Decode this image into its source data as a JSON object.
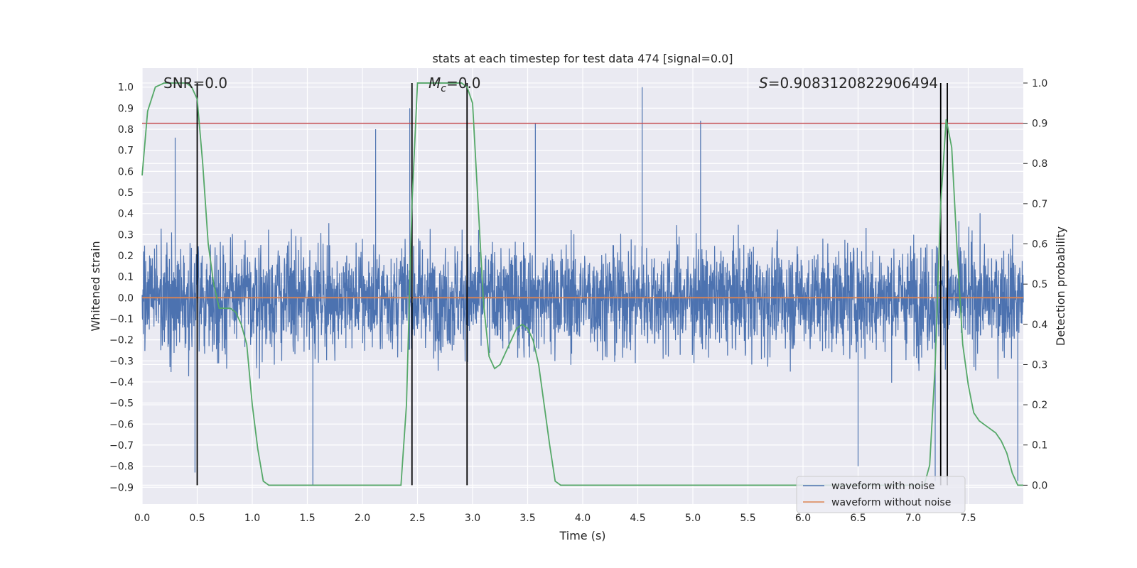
{
  "chart_data": {
    "type": "line",
    "title": "stats at each timestep for test data 474 [signal=0.0]",
    "xlabel": "Time (s)",
    "ylabel": "Whitened strain",
    "y2label": "Detection probability",
    "xlim": [
      0.0,
      8.0
    ],
    "ylim": [
      -0.98,
      1.09
    ],
    "y2lim": [
      -0.047,
      1.037
    ],
    "x_ticks": [
      "0.0",
      "0.5",
      "1.0",
      "1.5",
      "2.0",
      "2.5",
      "3.0",
      "3.5",
      "4.0",
      "4.5",
      "5.0",
      "5.5",
      "6.0",
      "6.5",
      "7.0",
      "7.5"
    ],
    "y_ticks": [
      "1.0",
      "0.9",
      "0.8",
      "0.7",
      "0.6",
      "0.5",
      "0.4",
      "0.3",
      "0.2",
      "0.1",
      "0.0",
      "−0.1",
      "−0.2",
      "−0.3",
      "−0.4",
      "−0.5",
      "−0.6",
      "−0.7",
      "−0.8",
      "−0.9"
    ],
    "y2_ticks": [
      "1.0",
      "0.9",
      "0.8",
      "0.7",
      "0.6",
      "0.5",
      "0.4",
      "0.3",
      "0.2",
      "0.1",
      "0.0"
    ],
    "grid": true,
    "legend_position": "lower-right",
    "series": [
      {
        "name": "waveform with noise",
        "color": "#4c72b0",
        "axis": "left",
        "description_values": "dense noise roughly between -0.6 and 0.6 with spikes to about 1.0 and -0.9",
        "spikes": [
          {
            "x": 0.3,
            "y": 0.76
          },
          {
            "x": 0.48,
            "y": -0.83
          },
          {
            "x": 1.55,
            "y": -0.89
          },
          {
            "x": 2.12,
            "y": 0.8
          },
          {
            "x": 2.43,
            "y": 0.9
          },
          {
            "x": 3.57,
            "y": 0.83
          },
          {
            "x": 4.54,
            "y": 1.0
          },
          {
            "x": 5.07,
            "y": 0.84
          },
          {
            "x": 6.5,
            "y": -0.8
          },
          {
            "x": 7.2,
            "y": -0.87
          },
          {
            "x": 7.95,
            "y": -0.87
          }
        ]
      },
      {
        "name": "waveform without noise",
        "color": "#dd8452",
        "axis": "left",
        "x": [
          0.0,
          8.0
        ],
        "values": [
          0.0,
          0.0
        ]
      },
      {
        "name": "",
        "color": "#55a868",
        "axis": "right",
        "x": [
          0.0,
          0.05,
          0.12,
          0.2,
          0.3,
          0.4,
          0.45,
          0.5,
          0.55,
          0.6,
          0.65,
          0.7,
          0.75,
          0.8,
          0.85,
          0.9,
          0.95,
          1.0,
          1.05,
          1.1,
          1.15,
          1.2,
          1.5,
          2.0,
          2.3,
          2.35,
          2.4,
          2.45,
          2.5,
          2.55,
          2.6,
          2.8,
          2.9,
          2.95,
          3.0,
          3.05,
          3.1,
          3.15,
          3.2,
          3.25,
          3.3,
          3.35,
          3.4,
          3.45,
          3.5,
          3.55,
          3.6,
          3.65,
          3.7,
          3.75,
          3.8,
          4.0,
          5.0,
          6.0,
          6.5,
          7.0,
          7.1,
          7.15,
          7.2,
          7.25,
          7.3,
          7.35,
          7.4,
          7.45,
          7.5,
          7.55,
          7.6,
          7.65,
          7.7,
          7.75,
          7.8,
          7.85,
          7.9,
          7.95,
          8.0
        ],
        "values": [
          0.77,
          0.93,
          0.99,
          1.0,
          1.0,
          1.0,
          0.99,
          0.96,
          0.8,
          0.6,
          0.5,
          0.44,
          0.44,
          0.44,
          0.43,
          0.4,
          0.35,
          0.2,
          0.09,
          0.01,
          0.0,
          0.0,
          0.0,
          0.0,
          0.0,
          0.0,
          0.2,
          0.7,
          1.0,
          1.0,
          1.0,
          1.0,
          1.0,
          0.99,
          0.95,
          0.7,
          0.45,
          0.32,
          0.29,
          0.3,
          0.33,
          0.36,
          0.39,
          0.4,
          0.39,
          0.36,
          0.3,
          0.2,
          0.1,
          0.01,
          0.0,
          0.0,
          0.0,
          0.0,
          0.0,
          0.0,
          0.0,
          0.05,
          0.3,
          0.7,
          0.91,
          0.84,
          0.58,
          0.35,
          0.25,
          0.18,
          0.16,
          0.15,
          0.14,
          0.13,
          0.11,
          0.08,
          0.03,
          0.0,
          0.0
        ]
      },
      {
        "name": "",
        "color": "#c44e52",
        "axis": "right",
        "x": [
          0.0,
          8.0
        ],
        "values": [
          0.9,
          0.9
        ]
      }
    ],
    "vlines": [
      0.5,
      2.45,
      2.95,
      7.25,
      7.31
    ],
    "annotations": {
      "snr": "SNR=0.0",
      "mc": "M",
      "mc_sub": "c",
      "mc_val": "=0.0",
      "s": "S",
      "s_val": "=0.9083120822906494"
    }
  }
}
